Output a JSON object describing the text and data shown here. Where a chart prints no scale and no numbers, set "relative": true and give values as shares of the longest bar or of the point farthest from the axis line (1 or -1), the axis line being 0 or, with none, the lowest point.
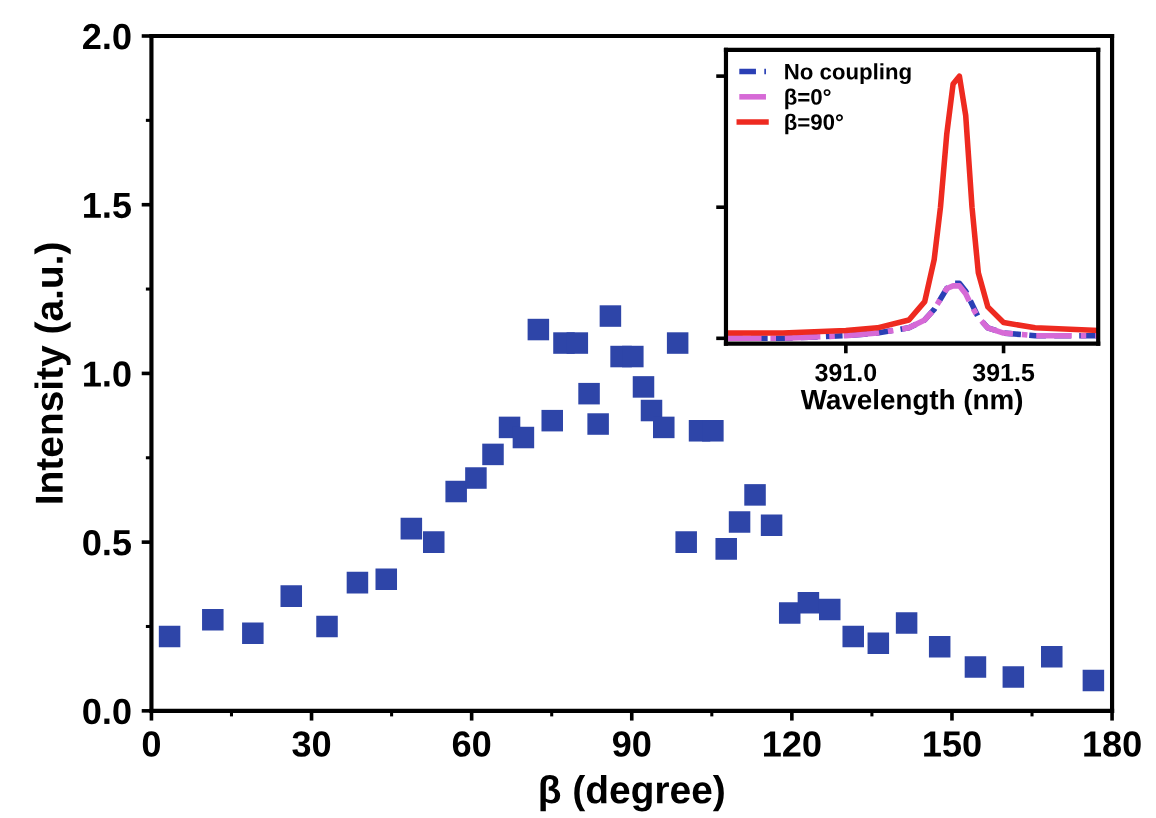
{
  "chart_data": [
    {
      "type": "scatter",
      "xlabel": "β (degree)",
      "ylabel": "Intensity (a.u.)",
      "xlim": [
        0,
        180
      ],
      "xticks": [
        0,
        30,
        60,
        90,
        120,
        150,
        180
      ],
      "ylim": [
        0,
        2
      ],
      "yticks": [
        {
          "value": 0,
          "label": "0.0"
        },
        {
          "value": 0.5,
          "label": "0.5"
        },
        {
          "value": 1,
          "label": "1.0"
        },
        {
          "value": 1.5,
          "label": "1.5"
        },
        {
          "value": 2,
          "label": "2.0"
        }
      ],
      "marker": "square",
      "grid": false,
      "legend": false,
      "x": [
        3.4,
        11.5,
        19,
        26.2,
        32.9,
        38.6,
        44,
        48.7,
        52.9,
        57.1,
        60.8,
        64,
        67.1,
        69.7,
        72.5,
        75.1,
        77.3,
        79.8,
        82,
        83.7,
        86,
        88,
        90.2,
        92.2,
        93.7,
        96,
        98.6,
        100.2,
        102.7,
        105.2,
        107.7,
        110.2,
        113.1,
        116.2,
        119.6,
        123.1,
        127.1,
        131.5,
        136.2,
        141.5,
        147.7,
        154.4,
        161.5,
        168.7,
        176.5
      ],
      "series": [
        {
          "color": "#2e45a8",
          "values": [
            0.22,
            0.27,
            0.23,
            0.34,
            0.25,
            0.38,
            0.39,
            0.54,
            0.5,
            0.65,
            0.69,
            0.76,
            0.84,
            0.81,
            1.13,
            0.86,
            1.09,
            1.09,
            0.94,
            0.85,
            1.17,
            1.05,
            1.05,
            0.96,
            0.89,
            0.84,
            1.09,
            0.5,
            0.83,
            0.83,
            0.48,
            0.56,
            0.64,
            0.55,
            0.29,
            0.32,
            0.3,
            0.22,
            0.2,
            0.26,
            0.19,
            0.13,
            0.1,
            0.16,
            0.09
          ]
        }
      ]
    },
    {
      "type": "line",
      "xlabel": "Wavelength (nm)",
      "xlim": [
        390.62,
        391.8
      ],
      "xticks": [
        {
          "value": 391.0,
          "label": "391.0"
        },
        {
          "value": 391.5,
          "label": "391.5"
        }
      ],
      "relative": true,
      "tick_labels": "x",
      "legend": "top left",
      "marker": "none",
      "x": [
        390.62,
        390.8,
        391.0,
        391.1,
        391.2,
        391.25,
        391.28,
        391.3,
        391.32,
        391.34,
        391.36,
        391.38,
        391.4,
        391.42,
        391.45,
        391.5,
        391.6,
        391.8
      ],
      "series": [
        {
          "name": "No coupling",
          "color": "#2a3fb5",
          "line_style": "dashed",
          "values": [
            0.0,
            0.0,
            0.01,
            0.02,
            0.04,
            0.07,
            0.11,
            0.15,
            0.19,
            0.21,
            0.21,
            0.18,
            0.13,
            0.08,
            0.04,
            0.02,
            0.01,
            0.01
          ]
        },
        {
          "name": "β=0°",
          "color": "#d66ad6",
          "line_style": "dashdot",
          "values": [
            0.0,
            0.0,
            0.01,
            0.02,
            0.04,
            0.07,
            0.11,
            0.15,
            0.19,
            0.2,
            0.2,
            0.17,
            0.12,
            0.08,
            0.04,
            0.02,
            0.01,
            0.01
          ]
        },
        {
          "name": "β=90°",
          "color": "#ee2a20",
          "line_style": "solid",
          "values": [
            0.02,
            0.02,
            0.03,
            0.04,
            0.07,
            0.14,
            0.3,
            0.5,
            0.78,
            0.97,
            1.0,
            0.85,
            0.5,
            0.25,
            0.12,
            0.06,
            0.04,
            0.03
          ]
        }
      ]
    }
  ]
}
